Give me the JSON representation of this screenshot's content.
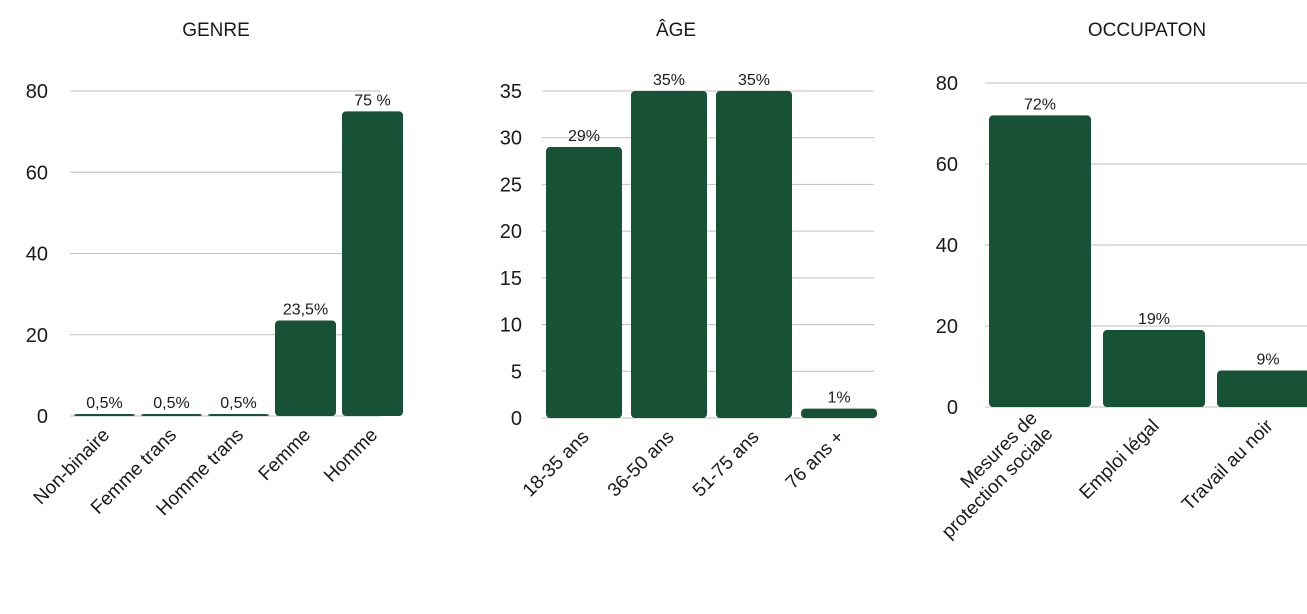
{
  "chart_data": [
    {
      "type": "bar",
      "title": "GENRE",
      "categories": [
        "Non-binaire",
        "Femme trans",
        "Homme trans",
        "Femme",
        "Homme"
      ],
      "values": [
        0.5,
        0.5,
        0.5,
        23.5,
        75
      ],
      "data_labels": [
        "0,5%",
        "0,5%",
        "0,5%",
        "23,5%",
        "75 %"
      ],
      "ylim": [
        0,
        80
      ],
      "yticks": [
        0,
        20,
        40,
        60,
        80
      ],
      "grid": true,
      "color": "#185236"
    },
    {
      "type": "bar",
      "title": "ÂGE",
      "categories": [
        "18-35 ans",
        "36-50 ans",
        "51-75 ans",
        "76 ans +"
      ],
      "values": [
        29,
        35,
        35,
        1
      ],
      "data_labels": [
        "29%",
        "35%",
        "35%",
        "1%"
      ],
      "ylim": [
        0,
        35
      ],
      "yticks": [
        0,
        5,
        10,
        15,
        20,
        25,
        30,
        35
      ],
      "grid": true,
      "color": "#185236"
    },
    {
      "type": "bar",
      "title": "OCCUPATON",
      "categories": [
        "Mesures de protection sociale",
        "Emploi légal",
        "Travail au noir"
      ],
      "category_lines": [
        [
          "Mesures de",
          "protection sociale"
        ],
        [
          "Emploi légal"
        ],
        [
          "Travail au noir"
        ]
      ],
      "values": [
        72,
        19,
        9
      ],
      "data_labels": [
        "72%",
        "19%",
        "9%"
      ],
      "ylim": [
        0,
        80
      ],
      "yticks": [
        0,
        20,
        40,
        60,
        80
      ],
      "grid": true,
      "color": "#185236"
    }
  ]
}
